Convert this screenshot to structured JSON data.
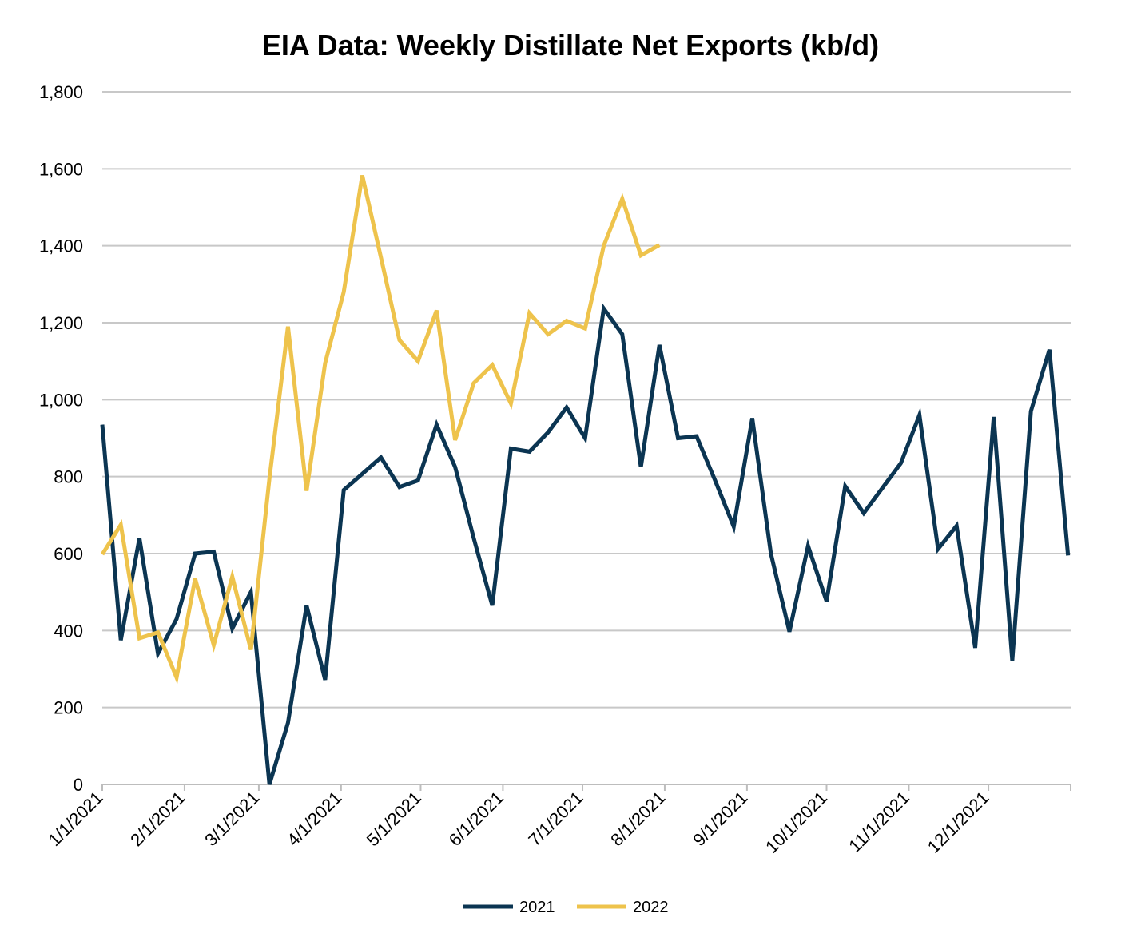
{
  "chart_data": {
    "type": "line",
    "title": "EIA Data: Weekly Distillate Net Exports (kb/d)",
    "xlabel": "",
    "ylabel": "",
    "ylim": [
      0,
      1800
    ],
    "yticks": [
      0,
      200,
      400,
      600,
      800,
      1000,
      1200,
      1400,
      1600,
      1800
    ],
    "ytick_labels": [
      "0",
      "200",
      "400",
      "600",
      "800",
      "1,000",
      "1,200",
      "1,400",
      "1,600",
      "1,800"
    ],
    "xlim_days": [
      0,
      365
    ],
    "xtick_days": [
      0,
      31,
      59,
      90,
      120,
      151,
      181,
      212,
      243,
      273,
      304,
      334,
      365
    ],
    "xtick_labels": [
      "1/1/2021",
      "2/1/2021",
      "3/1/2021",
      "4/1/2021",
      "5/1/2021",
      "6/1/2021",
      "7/1/2021",
      "8/1/2021",
      "9/1/2021",
      "10/1/2021",
      "11/1/2021",
      "12/1/2021",
      ""
    ],
    "grid": true,
    "legend_position": "bottom-center",
    "series": [
      {
        "name": "2021",
        "color": "#0b3552",
        "x_days": [
          0,
          7,
          14,
          21,
          28,
          35,
          42,
          49,
          56,
          63,
          70,
          77,
          84,
          91,
          98,
          105,
          112,
          119,
          126,
          133,
          140,
          147,
          154,
          161,
          168,
          175,
          182,
          189,
          196,
          203,
          210,
          217,
          224,
          231,
          238,
          245,
          252,
          259,
          266,
          273,
          280,
          287,
          294,
          301,
          308,
          315,
          322,
          329,
          336,
          343,
          350,
          357,
          364
        ],
        "values": [
          935,
          375,
          640,
          340,
          430,
          600,
          605,
          405,
          500,
          0,
          160,
          465,
          272,
          765,
          807,
          850,
          773,
          790,
          935,
          825,
          640,
          465,
          873,
          865,
          915,
          980,
          900,
          1237,
          1170,
          825,
          1142,
          900,
          905,
          790,
          670,
          952,
          600,
          397,
          620,
          476,
          775,
          705,
          770,
          835,
          960,
          612,
          672,
          355,
          955,
          322,
          970,
          1130,
          595
        ]
      },
      {
        "name": "2022",
        "color": "#eec34c",
        "x_days": [
          0,
          7,
          14,
          21,
          28,
          35,
          42,
          49,
          56,
          63,
          70,
          77,
          84,
          91,
          98,
          105,
          112,
          119,
          126,
          133,
          140,
          147,
          154,
          161,
          168,
          175,
          182,
          189,
          196,
          203,
          210
        ],
        "values": [
          598,
          675,
          380,
          395,
          278,
          535,
          362,
          540,
          350,
          795,
          1190,
          763,
          1095,
          1280,
          1583,
          1370,
          1155,
          1100,
          1232,
          895,
          1043,
          1090,
          990,
          1225,
          1170,
          1205,
          1185,
          1400,
          1522,
          1375,
          1402
        ]
      }
    ]
  }
}
